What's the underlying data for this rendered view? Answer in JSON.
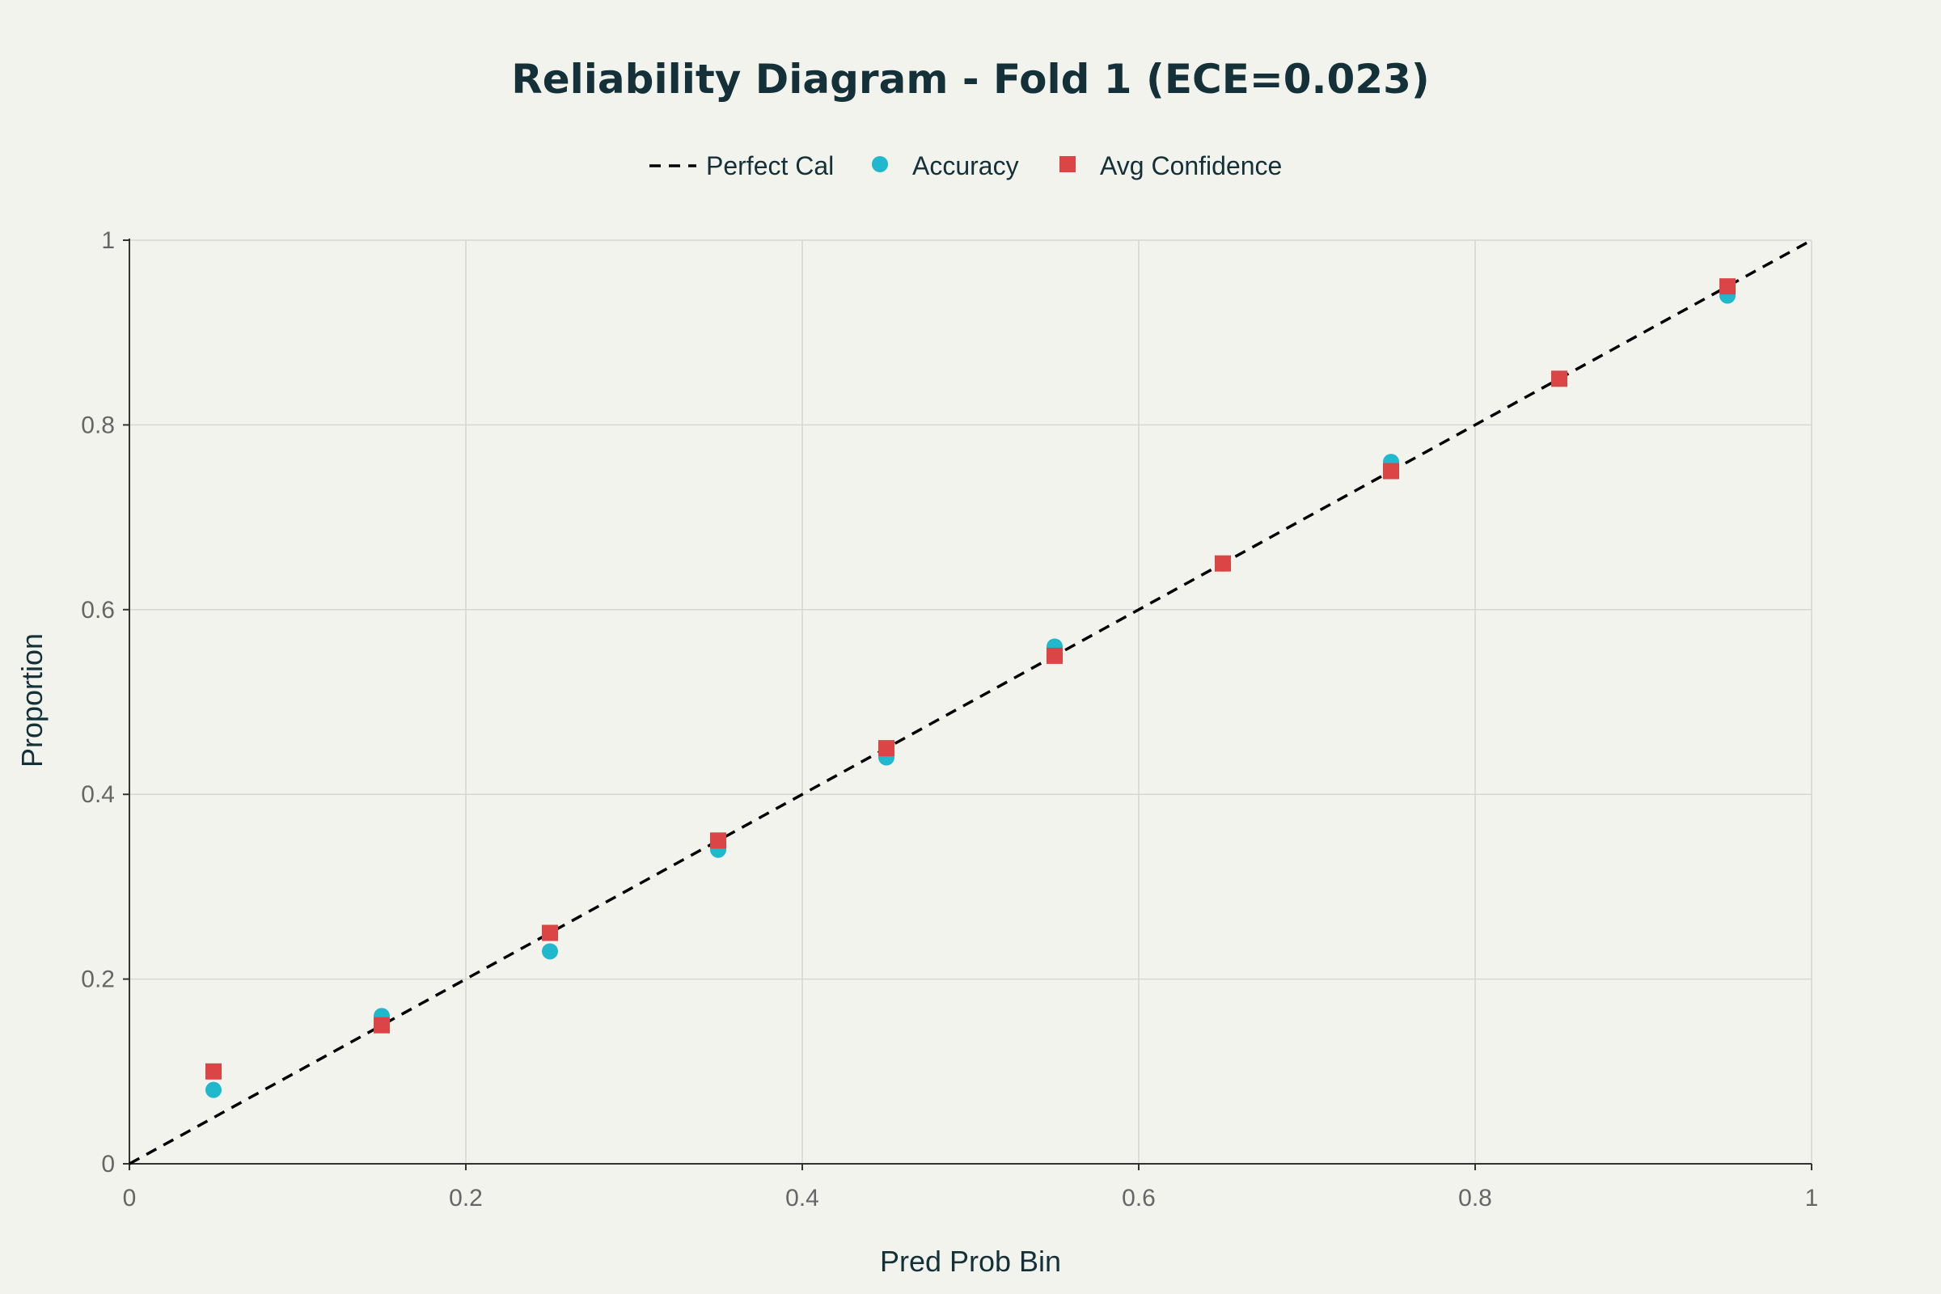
{
  "chart_data": {
    "type": "scatter",
    "title": "Reliability Diagram - Fold 1 (ECE=0.023)",
    "xlabel": "Pred Prob Bin",
    "ylabel": "Proportion",
    "xlim": [
      0,
      1
    ],
    "ylim": [
      0,
      1
    ],
    "xticks": [
      0,
      0.2,
      0.4,
      0.6,
      0.8,
      1
    ],
    "yticks": [
      0,
      0.2,
      0.4,
      0.6,
      0.8,
      1
    ],
    "xtick_labels": [
      "0",
      "0.2",
      "0.4",
      "0.6",
      "0.8",
      "1"
    ],
    "ytick_labels": [
      "0",
      "0.2",
      "0.4",
      "0.6",
      "0.8",
      "1"
    ],
    "grid": true,
    "legend_position": "top-center",
    "series": [
      {
        "name": "Perfect Cal",
        "kind": "line",
        "dash": "dashed",
        "color": "#000000",
        "x": [
          0,
          1
        ],
        "y": [
          0,
          1
        ]
      },
      {
        "name": "Accuracy",
        "kind": "marker",
        "marker": "circle",
        "color": "#1fb8cd",
        "x": [
          0.05,
          0.15,
          0.25,
          0.35,
          0.45,
          0.55,
          0.65,
          0.75,
          0.85,
          0.95
        ],
        "y": [
          0.08,
          0.16,
          0.23,
          0.34,
          0.44,
          0.56,
          0.65,
          0.76,
          0.85,
          0.94
        ]
      },
      {
        "name": "Avg Confidence",
        "kind": "marker",
        "marker": "square",
        "color": "#db4545",
        "x": [
          0.05,
          0.15,
          0.25,
          0.35,
          0.45,
          0.55,
          0.65,
          0.75,
          0.85,
          0.95
        ],
        "y": [
          0.1,
          0.15,
          0.25,
          0.35,
          0.45,
          0.55,
          0.65,
          0.75,
          0.85,
          0.95
        ]
      }
    ]
  }
}
